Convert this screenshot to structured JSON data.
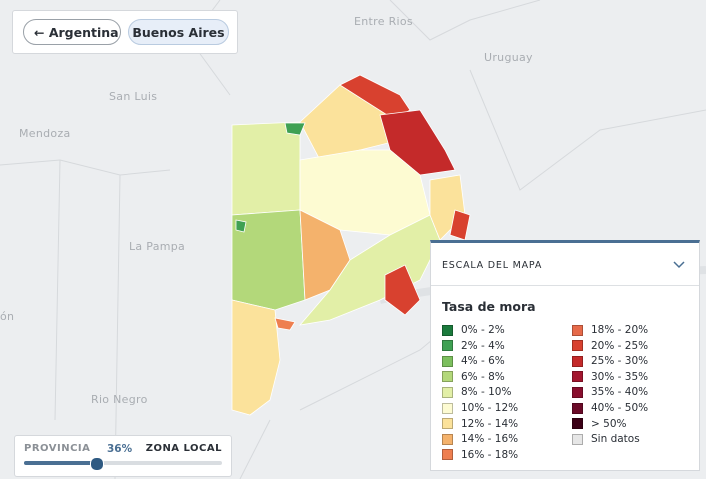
{
  "map_labels": [
    "Entre Rios",
    "Uruguay",
    "San Luis",
    "Mendoza",
    "La Pampa",
    "Rio Negro",
    "ón"
  ],
  "breadcrumb": {
    "back": "Argentina",
    "current": "Buenos Aires"
  },
  "legend": {
    "header": "ESCALA DEL MAPA",
    "title": "Tasa de mora",
    "items": [
      {
        "label": "0% - 2%",
        "color": "#1b7a3c"
      },
      {
        "label": "2% - 4%",
        "color": "#3fa153"
      },
      {
        "label": "4% - 6%",
        "color": "#7cbf5e"
      },
      {
        "label": "6% - 8%",
        "color": "#b3d87a"
      },
      {
        "label": "8% - 10%",
        "color": "#e2efa7"
      },
      {
        "label": "10% - 12%",
        "color": "#fdfbd2"
      },
      {
        "label": "12% - 14%",
        "color": "#fbe29b"
      },
      {
        "label": "14% - 16%",
        "color": "#f4b26c"
      },
      {
        "label": "16% - 18%",
        "color": "#ee7f50"
      },
      {
        "label": "18% - 20%",
        "color": "#e66a4a"
      },
      {
        "label": "20% - 25%",
        "color": "#d8412f"
      },
      {
        "label": "25% - 30%",
        "color": "#c42a2a"
      },
      {
        "label": "30% - 35%",
        "color": "#a3162f"
      },
      {
        "label": "35% - 40%",
        "color": "#880e2e"
      },
      {
        "label": "40% - 50%",
        "color": "#6b0a28"
      },
      {
        "label": "> 50%",
        "color": "#3b0016"
      },
      {
        "label": "Sin datos",
        "color": "#e6e6e6"
      }
    ]
  },
  "slider": {
    "left": "PROVINCIA",
    "value": "36%",
    "right": "ZONA LOCAL"
  }
}
